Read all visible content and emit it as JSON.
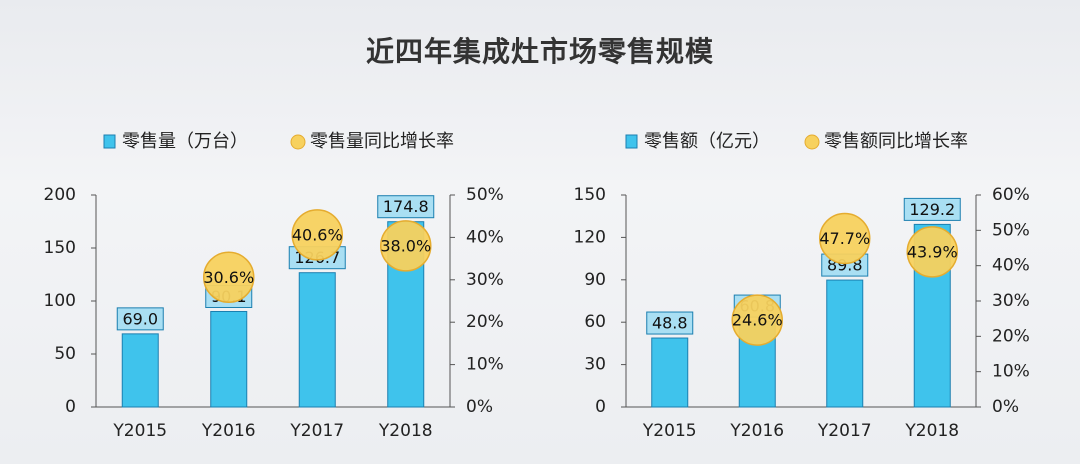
{
  "title": "近四年集成灶市场零售规模",
  "colors": {
    "bar_fill": "#3fc3ec",
    "bar_stroke": "#1b7fb0",
    "label_box": "#a9dff3",
    "circle_fill": "#f7d15e",
    "circle_stroke": "#e5ac2f"
  },
  "chart_data": [
    {
      "type": "bar",
      "categories": [
        "Y2015",
        "Y2016",
        "Y2017",
        "Y2018"
      ],
      "series": [
        {
          "name": "零售量（万台）",
          "type": "bar",
          "axis": "left",
          "values": [
            69.0,
            90.1,
            126.7,
            174.8
          ],
          "labels": [
            "69.0",
            "90.1",
            "126.7",
            "174.8"
          ]
        },
        {
          "name": "零售量同比增长率",
          "type": "bubble",
          "axis": "right",
          "values": [
            null,
            30.6,
            40.6,
            38.0
          ],
          "labels": [
            null,
            "30.6%",
            "40.6%",
            "38.0%"
          ]
        }
      ],
      "ylim": [
        0,
        200
      ],
      "yticks": [
        "0",
        "50",
        "100",
        "150",
        "200"
      ],
      "y2lim": [
        0,
        50
      ],
      "y2ticks": [
        "0%",
        "10%",
        "20%",
        "30%",
        "40%",
        "50%"
      ],
      "legend_placement": "top"
    },
    {
      "type": "bar",
      "categories": [
        "Y2015",
        "Y2016",
        "Y2017",
        "Y2018"
      ],
      "series": [
        {
          "name": "零售额（亿元）",
          "type": "bar",
          "axis": "left",
          "values": [
            48.8,
            60.8,
            89.8,
            129.2
          ],
          "labels": [
            "48.8",
            "60.8",
            "89.8",
            "129.2"
          ]
        },
        {
          "name": "零售额同比增长率",
          "type": "bubble",
          "axis": "right",
          "values": [
            null,
            24.6,
            47.7,
            43.9
          ],
          "labels": [
            null,
            "24.6%",
            "47.7%",
            "43.9%"
          ]
        }
      ],
      "ylim": [
        0,
        150
      ],
      "yticks": [
        "0",
        "30",
        "60",
        "90",
        "120",
        "150"
      ],
      "y2lim": [
        0,
        60
      ],
      "y2ticks": [
        "0%",
        "10%",
        "20%",
        "30%",
        "40%",
        "50%",
        "60%"
      ],
      "legend_placement": "top"
    }
  ]
}
